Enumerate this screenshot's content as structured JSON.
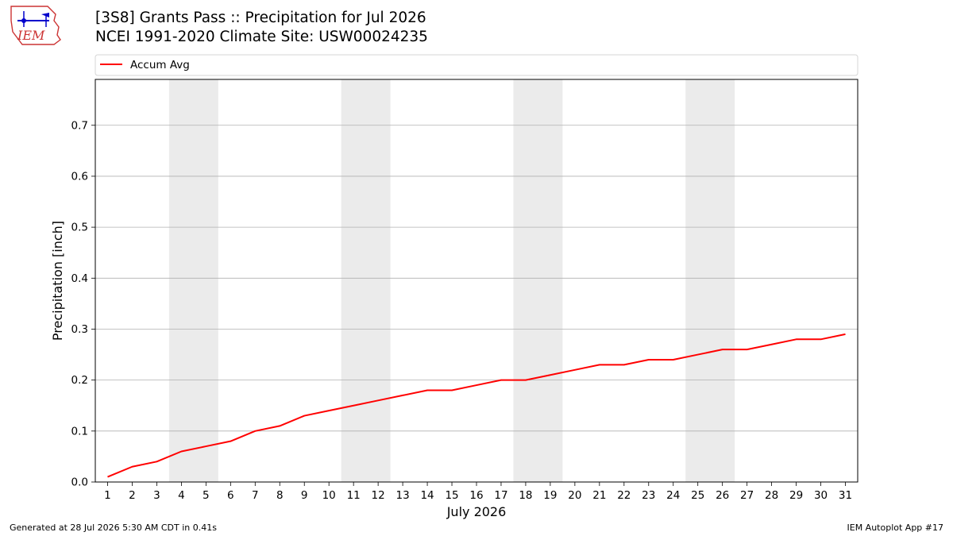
{
  "header": {
    "logo_text": "IEM",
    "title": "[3S8] Grants Pass :: Precipitation for Jul 2026",
    "subtitle": "NCEI 1991-2020 Climate Site: USW00024235"
  },
  "chart_data": {
    "type": "line",
    "title": "[3S8] Grants Pass :: Precipitation for Jul 2026",
    "subtitle": "NCEI 1991-2020 Climate Site: USW00024235",
    "xlabel": "July 2026",
    "ylabel": "Precipitation [inch]",
    "x": [
      1,
      2,
      3,
      4,
      5,
      6,
      7,
      8,
      9,
      10,
      11,
      12,
      13,
      14,
      15,
      16,
      17,
      18,
      19,
      20,
      21,
      22,
      23,
      24,
      25,
      26,
      27,
      28,
      29,
      30,
      31
    ],
    "xlim": [
      0.5,
      31.5
    ],
    "ylim": [
      0,
      0.79
    ],
    "yticks": [
      0.0,
      0.1,
      0.2,
      0.3,
      0.4,
      0.5,
      0.6,
      0.7
    ],
    "ytick_labels": [
      "0.0",
      "0.1",
      "0.2",
      "0.3",
      "0.4",
      "0.5",
      "0.6",
      "0.7"
    ],
    "grid": "horizontal",
    "legend_position": "top",
    "weekend_bands": [
      [
        3.5,
        5.5
      ],
      [
        10.5,
        12.5
      ],
      [
        17.5,
        19.5
      ],
      [
        24.5,
        26.5
      ]
    ],
    "band_color": "#ebebeb",
    "series": [
      {
        "name": "Accum Avg",
        "color": "#ff0000",
        "values": [
          0.01,
          0.03,
          0.04,
          0.06,
          0.07,
          0.08,
          0.1,
          0.11,
          0.13,
          0.14,
          0.15,
          0.16,
          0.17,
          0.18,
          0.18,
          0.19,
          0.2,
          0.2,
          0.21,
          0.22,
          0.23,
          0.23,
          0.24,
          0.24,
          0.25,
          0.26,
          0.26,
          0.27,
          0.28,
          0.28,
          0.29
        ]
      }
    ]
  },
  "footer": {
    "left": "Generated at 28 Jul 2026 5:30 AM CDT in 0.41s",
    "right": "IEM Autoplot App #17"
  }
}
